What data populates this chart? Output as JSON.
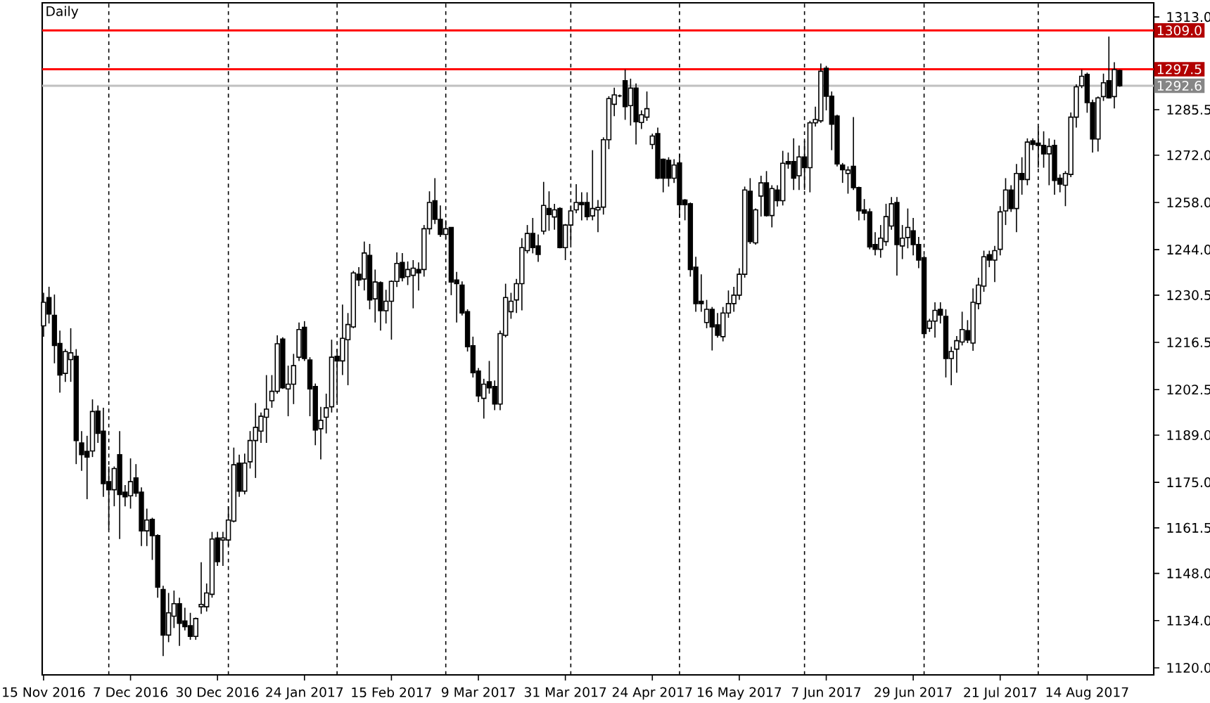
{
  "chart_data": {
    "type": "candlestick",
    "title": "Daily",
    "categories": [
      "15 Nov 2016",
      null,
      null,
      null,
      null,
      null,
      null,
      null,
      null,
      null,
      null,
      null,
      null,
      null,
      null,
      null,
      "7 Dec 2016",
      null,
      null,
      null,
      null,
      null,
      null,
      null,
      null,
      null,
      null,
      null,
      null,
      null,
      null,
      null,
      "30 Dec 2016",
      null,
      null,
      null,
      null,
      null,
      null,
      null,
      null,
      null,
      null,
      null,
      null,
      null,
      null,
      null,
      "24 Jan 2017",
      null,
      null,
      null,
      null,
      null,
      null,
      null,
      null,
      null,
      null,
      null,
      null,
      null,
      null,
      null,
      "15 Feb 2017",
      null,
      null,
      null,
      null,
      null,
      null,
      null,
      null,
      null,
      null,
      null,
      null,
      null,
      null,
      null,
      "9 Mar 2017",
      null,
      null,
      null,
      null,
      null,
      null,
      null,
      null,
      null,
      null,
      null,
      null,
      null,
      null,
      null,
      "31 Mar 2017",
      null,
      null,
      null,
      null,
      null,
      null,
      null,
      null,
      null,
      null,
      null,
      null,
      null,
      null,
      null,
      "24 Apr 2017",
      null,
      null,
      null,
      null,
      null,
      null,
      null,
      null,
      null,
      null,
      null,
      null,
      null,
      null,
      null,
      "16 May 2017",
      null,
      null,
      null,
      null,
      null,
      null,
      null,
      null,
      null,
      null,
      null,
      null,
      null,
      null,
      null,
      "7 Jun 2017",
      null,
      null,
      null,
      null,
      null,
      null,
      null,
      null,
      null,
      null,
      null,
      null,
      null,
      null,
      null,
      "29 Jun 2017",
      null,
      null,
      null,
      null,
      null,
      null,
      null,
      null,
      null,
      null,
      null,
      null,
      null,
      null,
      null,
      "21 Jul 2017",
      null,
      null,
      null,
      null,
      null,
      null,
      null,
      null,
      null,
      null,
      null,
      null,
      null,
      null,
      null,
      "14 Aug 2017",
      null,
      null,
      null,
      null,
      null,
      null
    ],
    "ylim": [
      1117.9,
      1317.2
    ],
    "yticks": [
      {
        "value": 1120,
        "label": "1120.0"
      },
      {
        "value": 1134,
        "label": "1134.0"
      },
      {
        "value": 1148,
        "label": "1148.0"
      },
      {
        "value": 1161.5,
        "label": "1161.5"
      },
      {
        "value": 1175,
        "label": "1175.0"
      },
      {
        "value": 1189,
        "label": "1189.0"
      },
      {
        "value": 1202.5,
        "label": "1202.5"
      },
      {
        "value": 1216.5,
        "label": "1216.5"
      },
      {
        "value": 1230.5,
        "label": "1230.5"
      },
      {
        "value": 1244,
        "label": "1244.0"
      },
      {
        "value": 1258,
        "label": "1258.0"
      },
      {
        "value": 1272,
        "label": "1272.0"
      },
      {
        "value": 1285.5,
        "label": "1285.5"
      },
      {
        "value": 1313,
        "label": "1313.0"
      }
    ],
    "ohlc": [
      [
        1221.4,
        1231.2,
        1218.2,
        1228.4
      ],
      [
        1229.8,
        1233.0,
        1222.1,
        1224.9
      ],
      [
        1224.5,
        1230.7,
        1210.3,
        1215.6
      ],
      [
        1216.2,
        1220.0,
        1201.6,
        1206.8
      ],
      [
        1207.3,
        1214.5,
        1204.8,
        1213.8
      ],
      [
        1211.4,
        1220.7,
        1204.8,
        1213.4
      ],
      [
        1212.4,
        1214.5,
        1180.4,
        1187.4
      ],
      [
        1186.7,
        1190.2,
        1178.4,
        1183.2
      ],
      [
        1184.2,
        1188.8,
        1170.0,
        1182.5
      ],
      [
        1184.3,
        1199.6,
        1182.5,
        1196.0
      ],
      [
        1196.1,
        1197.8,
        1186.7,
        1189.5
      ],
      [
        1190.2,
        1197.1,
        1170.7,
        1174.6
      ],
      [
        1175.2,
        1179.7,
        1161.0,
        1172.8
      ],
      [
        1172.8,
        1179.7,
        1167.9,
        1179.1
      ],
      [
        1183.2,
        1190.2,
        1158.2,
        1171.4
      ],
      [
        1172.1,
        1174.2,
        1167.9,
        1170.7
      ],
      [
        1171.0,
        1182.1,
        1167.2,
        1175.2
      ],
      [
        1176.3,
        1180.4,
        1170.7,
        1171.8
      ],
      [
        1172.1,
        1173.5,
        1156.1,
        1160.6
      ],
      [
        1160.6,
        1167.2,
        1156.1,
        1163.8
      ],
      [
        1164.0,
        1164.5,
        1152.0,
        1159.2
      ],
      [
        1159.2,
        1159.6,
        1140.8,
        1143.9
      ],
      [
        1143.2,
        1144.3,
        1123.5,
        1129.7
      ],
      [
        1129.7,
        1142.2,
        1127.6,
        1136.3
      ],
      [
        1135.3,
        1142.9,
        1131.8,
        1139.0
      ],
      [
        1139.0,
        1140.8,
        1126.5,
        1133.2
      ],
      [
        1133.9,
        1137.8,
        1131.1,
        1132.2
      ],
      [
        1132.5,
        1136.3,
        1128.3,
        1129.3
      ],
      [
        1129.3,
        1134.9,
        1128.3,
        1134.6
      ],
      [
        1138.1,
        1151.3,
        1136.0,
        1138.8
      ],
      [
        1138.1,
        1145.0,
        1136.7,
        1142.2
      ],
      [
        1141.8,
        1160.3,
        1140.8,
        1158.2
      ],
      [
        1158.5,
        1160.3,
        1150.2,
        1151.5
      ],
      [
        1157.9,
        1160.3,
        1150.2,
        1158.5
      ],
      [
        1157.9,
        1167.9,
        1156.1,
        1163.8
      ],
      [
        1163.5,
        1185.3,
        1163.1,
        1180.2
      ],
      [
        1180.7,
        1183.2,
        1170.7,
        1172.4
      ],
      [
        1172.4,
        1183.5,
        1171.4,
        1180.7
      ],
      [
        1181.1,
        1190.2,
        1179.1,
        1187.4
      ],
      [
        1187.4,
        1198.5,
        1176.3,
        1191.3
      ],
      [
        1190.2,
        1195.7,
        1186.7,
        1194.6
      ],
      [
        1194.3,
        1206.8,
        1186.7,
        1196.7
      ],
      [
        1199.2,
        1206.8,
        1197.1,
        1202.0
      ],
      [
        1202.0,
        1218.6,
        1201.3,
        1216.1
      ],
      [
        1217.5,
        1218.0,
        1202.7,
        1203.0
      ],
      [
        1202.7,
        1209.6,
        1194.6,
        1204.1
      ],
      [
        1204.1,
        1213.1,
        1198.2,
        1209.6
      ],
      [
        1212.1,
        1222.4,
        1211.0,
        1220.3
      ],
      [
        1221.0,
        1222.8,
        1211.0,
        1211.7
      ],
      [
        1211.3,
        1212.1,
        1194.6,
        1202.7
      ],
      [
        1203.4,
        1204.3,
        1186.0,
        1190.5
      ],
      [
        1190.9,
        1197.4,
        1181.8,
        1193.4
      ],
      [
        1194.3,
        1201.3,
        1189.5,
        1197.1
      ],
      [
        1197.4,
        1217.3,
        1195.7,
        1212.1
      ],
      [
        1212.4,
        1214.5,
        1198.5,
        1211.0
      ],
      [
        1211.0,
        1227.7,
        1206.8,
        1217.7
      ],
      [
        1217.3,
        1225.2,
        1203.8,
        1221.8
      ],
      [
        1221.1,
        1237.7,
        1220.7,
        1237.1
      ],
      [
        1236.7,
        1238.8,
        1233.2,
        1235.0
      ],
      [
        1235.3,
        1246.4,
        1231.9,
        1243.0
      ],
      [
        1242.3,
        1245.7,
        1226.3,
        1229.1
      ],
      [
        1229.4,
        1238.1,
        1222.4,
        1234.4
      ],
      [
        1234.2,
        1234.6,
        1220.0,
        1225.9
      ],
      [
        1225.9,
        1232.1,
        1222.1,
        1228.7
      ],
      [
        1228.7,
        1234.9,
        1217.3,
        1234.6
      ],
      [
        1234.6,
        1243.2,
        1232.9,
        1239.9
      ],
      [
        1240.2,
        1243.0,
        1234.6,
        1235.7
      ],
      [
        1236.0,
        1240.5,
        1233.5,
        1238.1
      ],
      [
        1236.4,
        1240.9,
        1226.6,
        1238.5
      ],
      [
        1238.1,
        1240.2,
        1231.9,
        1237.1
      ],
      [
        1238.1,
        1251.3,
        1236.0,
        1250.2
      ],
      [
        1250.2,
        1261.3,
        1248.5,
        1258.0
      ],
      [
        1258.5,
        1265.2,
        1251.6,
        1253.0
      ],
      [
        1253.0,
        1257.1,
        1247.8,
        1248.5
      ],
      [
        1248.5,
        1252.7,
        1247.1,
        1250.2
      ],
      [
        1250.6,
        1250.6,
        1230.5,
        1234.4
      ],
      [
        1235.0,
        1237.4,
        1222.4,
        1233.9
      ],
      [
        1233.5,
        1234.6,
        1224.5,
        1225.2
      ],
      [
        1225.6,
        1226.3,
        1213.8,
        1215.2
      ],
      [
        1215.5,
        1218.2,
        1206.1,
        1207.5
      ],
      [
        1208.0,
        1208.9,
        1198.8,
        1200.6
      ],
      [
        1199.9,
        1205.7,
        1193.9,
        1204.1
      ],
      [
        1204.8,
        1211.0,
        1201.3,
        1203.0
      ],
      [
        1203.4,
        1205.2,
        1196.4,
        1198.2
      ],
      [
        1198.2,
        1220.0,
        1196.4,
        1219.1
      ],
      [
        1218.6,
        1233.9,
        1218.0,
        1229.8
      ],
      [
        1225.6,
        1231.2,
        1223.5,
        1228.7
      ],
      [
        1229.1,
        1235.3,
        1225.2,
        1233.9
      ],
      [
        1233.9,
        1247.4,
        1226.0,
        1244.6
      ],
      [
        1243.7,
        1251.3,
        1242.9,
        1248.8
      ],
      [
        1248.8,
        1253.4,
        1242.9,
        1244.6
      ],
      [
        1245.1,
        1248.5,
        1240.4,
        1242.6
      ],
      [
        1249.5,
        1264.1,
        1248.5,
        1257.1
      ],
      [
        1256.2,
        1261.3,
        1249.6,
        1254.4
      ],
      [
        1253.7,
        1257.6,
        1249.9,
        1255.8
      ],
      [
        1256.2,
        1256.6,
        1244.4,
        1244.6
      ],
      [
        1244.6,
        1251.6,
        1240.9,
        1251.3
      ],
      [
        1251.3,
        1257.1,
        1245.7,
        1255.5
      ],
      [
        1255.8,
        1263.4,
        1254.8,
        1258.0
      ],
      [
        1258.0,
        1261.0,
        1252.7,
        1257.3
      ],
      [
        1258.0,
        1261.0,
        1252.7,
        1253.8
      ],
      [
        1254.0,
        1273.5,
        1252.7,
        1256.2
      ],
      [
        1255.8,
        1258.7,
        1249.2,
        1256.5
      ],
      [
        1256.6,
        1277.3,
        1254.4,
        1276.6
      ],
      [
        1276.6,
        1289.5,
        1273.8,
        1288.8
      ],
      [
        1287.1,
        1292.0,
        1283.6,
        1289.9
      ],
      [
        1289.6,
        1290.0,
        1289.2,
        1289.6
      ],
      [
        1294.1,
        1297.4,
        1282.5,
        1286.4
      ],
      [
        1286.7,
        1294.7,
        1280.8,
        1291.9
      ],
      [
        1291.9,
        1293.3,
        1275.2,
        1281.9
      ],
      [
        1281.7,
        1285.3,
        1279.8,
        1284.0
      ],
      [
        1283.3,
        1290.9,
        1282.2,
        1285.8
      ],
      [
        1275.2,
        1278.4,
        1273.8,
        1277.7
      ],
      [
        1278.4,
        1280.2,
        1264.9,
        1265.2
      ],
      [
        1270.8,
        1271.0,
        1261.0,
        1265.2
      ],
      [
        1270.5,
        1271.4,
        1262.7,
        1265.2
      ],
      [
        1265.2,
        1270.8,
        1263.8,
        1269.1
      ],
      [
        1269.7,
        1272.5,
        1253.4,
        1257.3
      ],
      [
        1258.7,
        1259.0,
        1252.7,
        1257.3
      ],
      [
        1257.6,
        1258.0,
        1236.0,
        1238.1
      ],
      [
        1238.8,
        1241.9,
        1225.6,
        1228.0
      ],
      [
        1228.7,
        1236.7,
        1225.6,
        1228.0
      ],
      [
        1222.4,
        1229.1,
        1220.7,
        1226.3
      ],
      [
        1226.3,
        1227.0,
        1214.1,
        1221.1
      ],
      [
        1221.7,
        1225.2,
        1217.9,
        1218.6
      ],
      [
        1218.2,
        1227.0,
        1216.8,
        1225.2
      ],
      [
        1225.2,
        1231.9,
        1223.8,
        1228.0
      ],
      [
        1228.0,
        1233.0,
        1225.6,
        1230.5
      ],
      [
        1230.5,
        1238.5,
        1229.1,
        1236.7
      ],
      [
        1236.7,
        1262.7,
        1235.7,
        1261.7
      ],
      [
        1261.3,
        1265.2,
        1245.7,
        1246.4
      ],
      [
        1246.0,
        1256.2,
        1245.5,
        1255.8
      ],
      [
        1259.9,
        1265.9,
        1253.8,
        1263.8
      ],
      [
        1263.8,
        1267.3,
        1253.8,
        1254.1
      ],
      [
        1254.1,
        1263.1,
        1250.6,
        1262.1
      ],
      [
        1261.7,
        1263.1,
        1256.8,
        1258.5
      ],
      [
        1258.5,
        1273.3,
        1257.1,
        1269.6
      ],
      [
        1270.1,
        1272.8,
        1268.0,
        1269.4
      ],
      [
        1270.1,
        1277.0,
        1261.7,
        1265.2
      ],
      [
        1265.9,
        1274.9,
        1261.7,
        1271.5
      ],
      [
        1271.5,
        1276.3,
        1261.7,
        1268.3
      ],
      [
        1268.3,
        1282.2,
        1261.0,
        1281.6
      ],
      [
        1281.6,
        1286.4,
        1280.5,
        1282.6
      ],
      [
        1282.2,
        1299.2,
        1281.6,
        1296.9
      ],
      [
        1297.8,
        1298.5,
        1285.3,
        1289.5
      ],
      [
        1289.5,
        1290.9,
        1273.5,
        1281.2
      ],
      [
        1283.6,
        1284.0,
        1268.7,
        1269.4
      ],
      [
        1269.1,
        1269.7,
        1263.8,
        1267.7
      ],
      [
        1266.6,
        1268.7,
        1260.6,
        1267.6
      ],
      [
        1268.7,
        1283.3,
        1261.7,
        1262.4
      ],
      [
        1262.4,
        1262.7,
        1252.7,
        1255.5
      ],
      [
        1255.8,
        1259.0,
        1252.7,
        1254.8
      ],
      [
        1255.2,
        1256.2,
        1244.1,
        1244.8
      ],
      [
        1245.5,
        1249.2,
        1242.3,
        1244.1
      ],
      [
        1244.1,
        1251.3,
        1241.6,
        1247.4
      ],
      [
        1246.4,
        1257.6,
        1245.1,
        1253.8
      ],
      [
        1251.0,
        1259.6,
        1249.9,
        1257.6
      ],
      [
        1258.0,
        1259.6,
        1236.3,
        1245.5
      ],
      [
        1245.1,
        1251.3,
        1241.2,
        1247.4
      ],
      [
        1247.6,
        1256.2,
        1244.4,
        1250.6
      ],
      [
        1249.6,
        1253.4,
        1242.3,
        1245.5
      ],
      [
        1245.5,
        1247.8,
        1238.5,
        1240.9
      ],
      [
        1241.6,
        1242.3,
        1217.7,
        1219.1
      ],
      [
        1220.7,
        1223.5,
        1219.6,
        1222.8
      ],
      [
        1222.8,
        1228.4,
        1217.9,
        1226.0
      ],
      [
        1226.3,
        1228.4,
        1222.1,
        1224.6
      ],
      [
        1224.2,
        1226.3,
        1206.1,
        1211.7
      ],
      [
        1211.7,
        1215.2,
        1203.8,
        1213.8
      ],
      [
        1214.5,
        1218.4,
        1207.5,
        1217.0
      ],
      [
        1216.6,
        1225.6,
        1215.6,
        1220.3
      ],
      [
        1220.0,
        1223.1,
        1216.3,
        1217.2
      ],
      [
        1216.3,
        1232.5,
        1214.0,
        1228.4
      ],
      [
        1228.0,
        1235.7,
        1226.3,
        1233.5
      ],
      [
        1233.2,
        1243.7,
        1231.5,
        1241.9
      ],
      [
        1242.5,
        1243.7,
        1238.8,
        1240.9
      ],
      [
        1240.9,
        1245.1,
        1234.4,
        1243.7
      ],
      [
        1244.1,
        1256.9,
        1242.3,
        1255.2
      ],
      [
        1255.5,
        1265.2,
        1251.3,
        1261.7
      ],
      [
        1261.7,
        1263.1,
        1255.2,
        1256.2
      ],
      [
        1256.2,
        1269.4,
        1249.2,
        1266.6
      ],
      [
        1266.6,
        1271.4,
        1260.3,
        1264.8
      ],
      [
        1264.8,
        1277.0,
        1263.1,
        1275.9
      ],
      [
        1276.3,
        1277.0,
        1273.5,
        1275.2
      ],
      [
        1275.6,
        1280.5,
        1268.3,
        1274.9
      ],
      [
        1274.9,
        1279.1,
        1268.3,
        1272.4
      ],
      [
        1272.4,
        1277.0,
        1263.1,
        1274.6
      ],
      [
        1274.9,
        1276.6,
        1260.3,
        1264.5
      ],
      [
        1265.2,
        1266.3,
        1261.0,
        1263.4
      ],
      [
        1263.1,
        1267.3,
        1256.9,
        1266.6
      ],
      [
        1266.3,
        1284.7,
        1265.5,
        1283.3
      ],
      [
        1283.3,
        1293.0,
        1280.2,
        1292.3
      ],
      [
        1292.6,
        1297.4,
        1291.9,
        1295.4
      ],
      [
        1296.0,
        1296.5,
        1284.6,
        1287.6
      ],
      [
        1287.6,
        1288.5,
        1272.8,
        1276.8
      ],
      [
        1276.8,
        1289.4,
        1273.1,
        1289.0
      ],
      [
        1289.4,
        1296.2,
        1288.1,
        1293.5
      ],
      [
        1294.1,
        1307.2,
        1288.8,
        1289.0
      ],
      [
        1289.4,
        1299.6,
        1285.9,
        1297.4
      ],
      [
        1297.1,
        1297.4,
        1292.3,
        1292.6
      ]
    ],
    "ref_lines": [
      {
        "axis": "y",
        "value": 1309.0,
        "label": "1309.0",
        "color": "#ff0000",
        "line_style": "solid"
      },
      {
        "axis": "y",
        "value": 1297.5,
        "label": "1297.5",
        "color": "#ff0000",
        "line_style": "solid"
      },
      {
        "axis": "y",
        "value": 1292.6,
        "label": "1292.6",
        "color": "#c0c0c0",
        "line_style": "solid"
      }
    ]
  }
}
